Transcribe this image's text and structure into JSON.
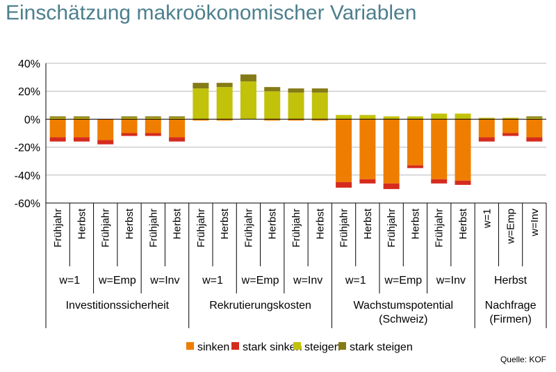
{
  "title": "Einschätzung makroökonomischer Variablen",
  "source": "Quelle: KOF",
  "chart_data": {
    "type": "bar",
    "stacked": true,
    "ylim": [
      -60,
      40
    ],
    "yticks": [
      "40%",
      "20%",
      "0%",
      "-20%",
      "-40%",
      "-60%"
    ],
    "grid": true,
    "legend_position": "bottom",
    "categories": [
      "Frühjahr",
      "Herbst",
      "Frühjahr",
      "Herbst",
      "Frühjahr",
      "Herbst",
      "Frühjahr",
      "Herbst",
      "Frühjahr",
      "Herbst",
      "Frühjahr",
      "Herbst",
      "Frühjahr",
      "Herbst",
      "Frühjahr",
      "Herbst",
      "Frühjahr",
      "Herbst",
      "w=1",
      "w=Emp",
      "w=Inv"
    ],
    "subgroups": [
      {
        "label": "w=1",
        "count": 2
      },
      {
        "label": "w=Emp",
        "count": 2
      },
      {
        "label": "w=Inv",
        "count": 2
      },
      {
        "label": "w=1",
        "count": 2
      },
      {
        "label": "w=Emp",
        "count": 2
      },
      {
        "label": "w=Inv",
        "count": 2
      },
      {
        "label": "w=1",
        "count": 2
      },
      {
        "label": "w=Emp",
        "count": 2
      },
      {
        "label": "w=Inv",
        "count": 2
      },
      {
        "label": "Herbst",
        "count": 3
      }
    ],
    "groups": [
      {
        "label": "Investitionssicherheit",
        "count": 6
      },
      {
        "label": "Rekrutierungskosten",
        "count": 6
      },
      {
        "label": "Wachstumspotential\n(Schweiz)",
        "count": 6
      },
      {
        "label": "Nachfrage\n(Firmen)",
        "count": 3
      }
    ],
    "series": [
      {
        "name": "sinken",
        "color": "#ef7d00",
        "values": [
          -13,
          -13,
          -15,
          -10,
          -10,
          -13,
          -1,
          -1,
          0,
          -1,
          -1,
          -1,
          -45,
          -43,
          -46,
          -33,
          -43,
          -44,
          -13,
          -10,
          -13
        ]
      },
      {
        "name": "stark sinken",
        "color": "#d52b1e",
        "values": [
          -3,
          -3,
          -3,
          -2,
          -2,
          -3,
          0,
          0,
          0,
          0,
          0,
          0,
          -4,
          -3,
          -4,
          -2,
          -3,
          -3,
          -3,
          -2,
          -3
        ]
      },
      {
        "name": "steigen",
        "color": "#c2c20a",
        "values": [
          1,
          1,
          0,
          1,
          1,
          1,
          22,
          23,
          27,
          20,
          19,
          19,
          3,
          3,
          2,
          2,
          4,
          4,
          1,
          1,
          1
        ]
      },
      {
        "name": "stark steigen",
        "color": "#857b16",
        "values": [
          1,
          1,
          0,
          1,
          1,
          1,
          4,
          3,
          5,
          3,
          3,
          3,
          0,
          0,
          0,
          0,
          0,
          0,
          0,
          0,
          1
        ]
      }
    ]
  }
}
